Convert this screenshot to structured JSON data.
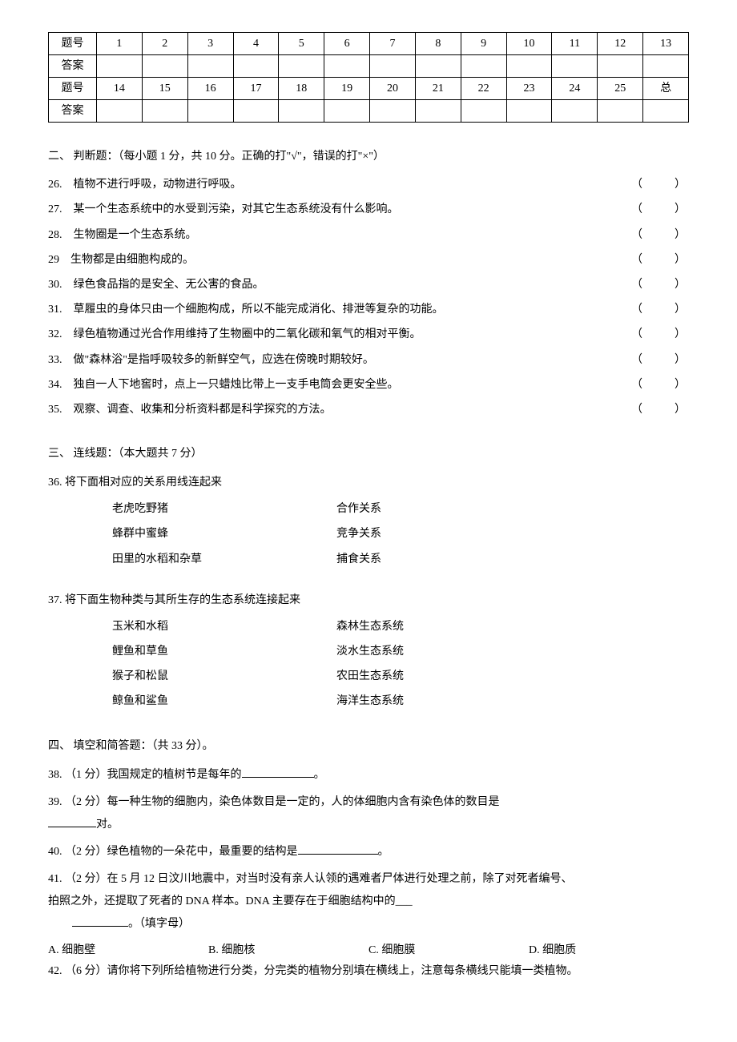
{
  "table": {
    "row_label_1": "题号",
    "row_label_2": "答案",
    "row_label_3": "题号",
    "row_label_4": "答案",
    "numbers_top": [
      "1",
      "2",
      "3",
      "4",
      "5",
      "6",
      "7",
      "8",
      "9",
      "10",
      "11",
      "12",
      "13"
    ],
    "numbers_bottom": [
      "14",
      "15",
      "16",
      "17",
      "18",
      "19",
      "20",
      "21",
      "22",
      "23",
      "24",
      "25",
      "总"
    ]
  },
  "section2": {
    "title": "二、 判断题：（每小题 1 分，共 10 分。正确的打\"√\"，错误的打\"×\"）",
    "items": [
      {
        "num": "26.",
        "text": "植物不进行呼吸，动物进行呼吸。"
      },
      {
        "num": "27.",
        "text": "某一个生态系统中的水受到污染，对其它生态系统没有什么影响。"
      },
      {
        "num": "28.",
        "text": "生物圈是一个生态系统。"
      },
      {
        "num": "29",
        "text": "生物都是由细胞构成的。"
      },
      {
        "num": "30.",
        "text": "绿色食品指的是安全、无公害的食品。"
      },
      {
        "num": "31.",
        "text": "草履虫的身体只由一个细胞构成，所以不能完成消化、排泄等复杂的功能。"
      },
      {
        "num": "32.",
        "text": "绿色植物通过光合作用维持了生物圈中的二氧化碳和氧气的相对平衡。"
      },
      {
        "num": "33.",
        "text": "做\"森林浴\"是指呼吸较多的新鲜空气，应选在傍晚时期较好。"
      },
      {
        "num": "34.",
        "text": "独自一人下地窖时，点上一只蜡烛比带上一支手电筒会更安全些。"
      },
      {
        "num": "35.",
        "text": "观察、调查、收集和分析资料都是科学探究的方法。"
      }
    ],
    "paren": "（　　）"
  },
  "section3": {
    "title": "三、 连线题：（本大题共 7 分）",
    "q36": {
      "prompt": "36. 将下面相对应的关系用线连起来",
      "pairs": [
        {
          "left": "老虎吃野猪",
          "right": "合作关系"
        },
        {
          "left": "蜂群中蜜蜂",
          "right": "竞争关系"
        },
        {
          "left": "田里的水稻和杂草",
          "right": "捕食关系"
        }
      ]
    },
    "q37": {
      "prompt": "37. 将下面生物种类与其所生存的生态系统连接起来",
      "pairs": [
        {
          "left": "玉米和水稻",
          "right": "森林生态系统"
        },
        {
          "left": "鲤鱼和草鱼",
          "right": "淡水生态系统"
        },
        {
          "left": "猴子和松鼠",
          "right": "农田生态系统"
        },
        {
          "left": "鲸鱼和鲨鱼",
          "right": "海洋生态系统"
        }
      ]
    }
  },
  "section4": {
    "title": "四、 填空和简答题：（共 33 分）。",
    "q38": {
      "num": "38.",
      "text_before": "（1 分）我国规定的植树节是每年的",
      "text_after": "。"
    },
    "q39": {
      "num": "39.",
      "text_before": "（2 分）每一种生物的细胞内，染色体数目是一定的，人的体细胞内含有染色体的数目是",
      "text_line2_after": "对。"
    },
    "q40": {
      "num": "40.",
      "text_before": "（2 分）绿色植物的一朵花中，最重要的结构是",
      "text_after": "。"
    },
    "q41": {
      "num": "41.",
      "text_line1": "（2 分）在 5 月 12 日汶川地震中，对当时没有亲人认领的遇难者尸体进行处理之前，除了对死者编号、",
      "text_line2": "拍照之外，还提取了死者的 DNA 样本。DNA 主要存在于细胞结构中的___",
      "text_line3_after": "。（填字母）",
      "options": [
        {
          "label": "A.",
          "text": "细胞壁"
        },
        {
          "label": "B.",
          "text": "细胞核"
        },
        {
          "label": "C.",
          "text": "细胞膜"
        },
        {
          "label": "D.",
          "text": "细胞质"
        }
      ]
    },
    "q42": {
      "num": "42.",
      "text": "（6 分）请你将下列所给植物进行分类，分完类的植物分别填在横线上，注意每条横线只能填一类植物。"
    }
  }
}
